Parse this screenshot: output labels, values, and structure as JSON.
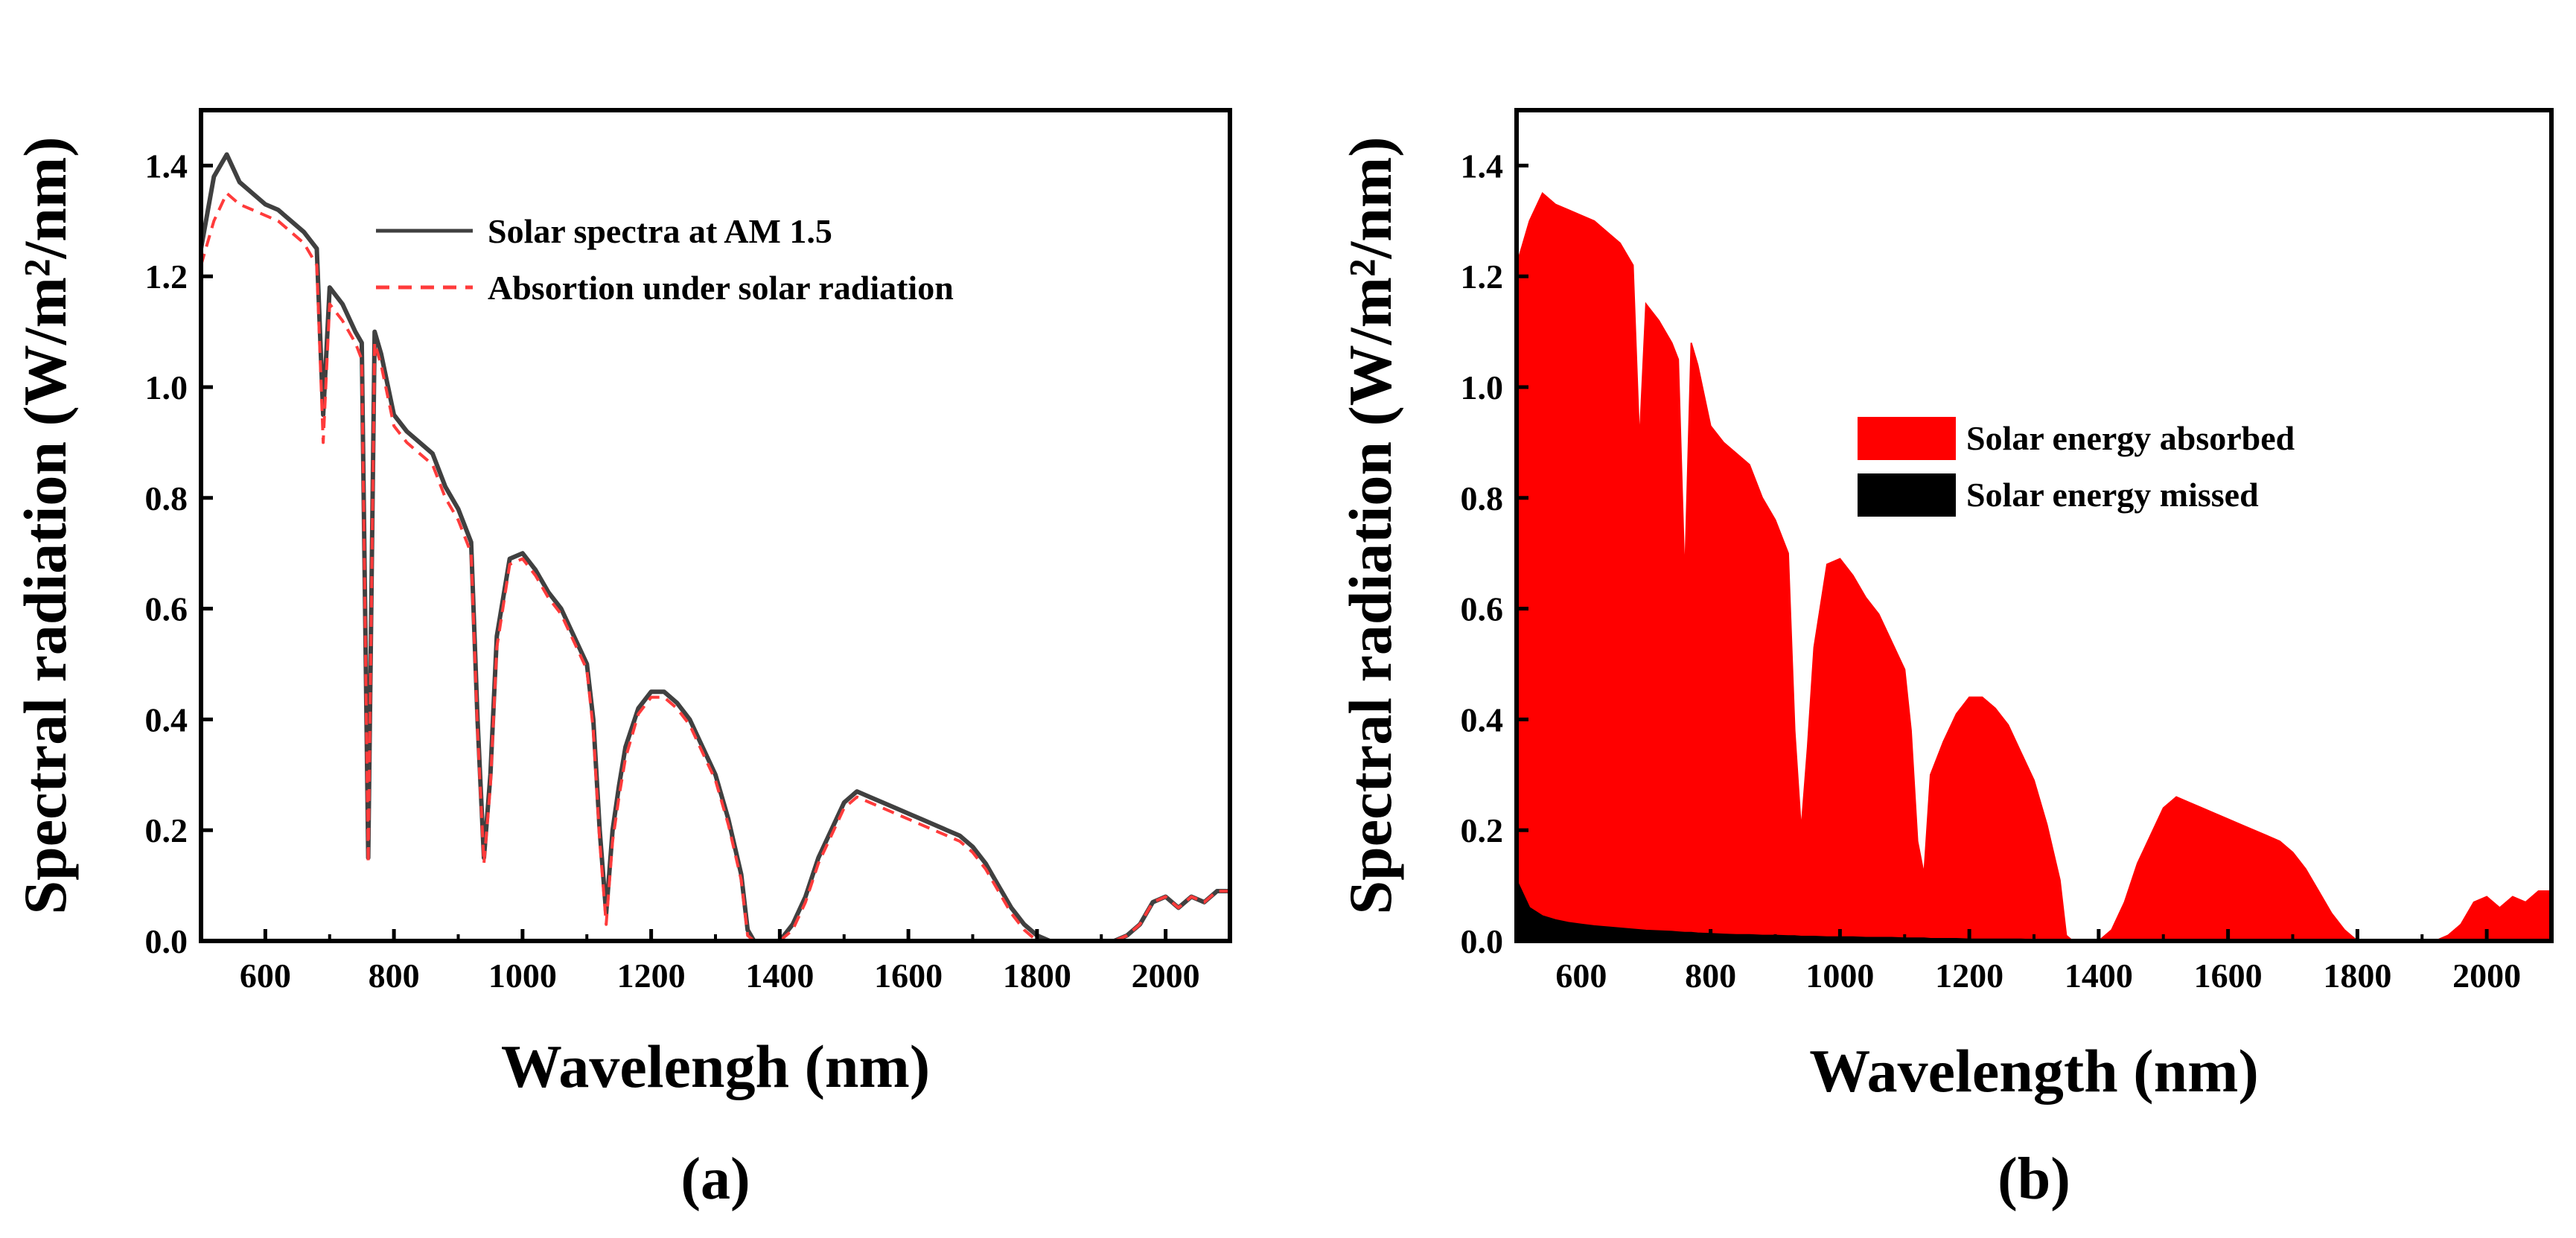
{
  "chart_data": [
    {
      "type": "line",
      "panel_label": "(a)",
      "xlabel": "Wavelengh (nm)",
      "ylabel": "Spectral radiation (W/m²/nm)",
      "xlim": [
        500,
        2100
      ],
      "ylim": [
        0,
        1.5
      ],
      "xticks": [
        600,
        800,
        1000,
        1200,
        1400,
        1600,
        1800,
        2000
      ],
      "yticks": [
        0.0,
        0.2,
        0.4,
        0.6,
        0.8,
        1.0,
        1.2,
        1.4
      ],
      "xtick_labels": [
        "600",
        "800",
        "1000",
        "1200",
        "1400",
        "1600",
        "1800",
        "2000"
      ],
      "ytick_labels": [
        "0.0",
        "0.2",
        "0.4",
        "0.6",
        "0.8",
        "1.0",
        "1.2",
        "1.4"
      ],
      "grid": false,
      "legend_position": "top-right",
      "x": [
        500,
        520,
        540,
        560,
        580,
        600,
        620,
        640,
        660,
        680,
        690,
        700,
        720,
        740,
        750,
        760,
        770,
        780,
        800,
        820,
        840,
        860,
        880,
        900,
        920,
        930,
        940,
        950,
        960,
        980,
        1000,
        1020,
        1040,
        1060,
        1080,
        1100,
        1110,
        1120,
        1130,
        1140,
        1150,
        1160,
        1180,
        1200,
        1220,
        1240,
        1260,
        1280,
        1300,
        1320,
        1340,
        1350,
        1360,
        1380,
        1400,
        1420,
        1440,
        1460,
        1480,
        1500,
        1520,
        1540,
        1560,
        1580,
        1600,
        1620,
        1640,
        1660,
        1680,
        1700,
        1720,
        1740,
        1760,
        1780,
        1800,
        1820,
        1840,
        1860,
        1880,
        1900,
        1920,
        1940,
        1960,
        1980,
        2000,
        2020,
        2040,
        2060,
        2080,
        2100
      ],
      "series": [
        {
          "name": "Solar spectra at AM 1.5",
          "color": "#404040",
          "dash": "solid",
          "values": [
            1.25,
            1.38,
            1.42,
            1.37,
            1.35,
            1.33,
            1.32,
            1.3,
            1.28,
            1.25,
            0.95,
            1.18,
            1.15,
            1.1,
            1.08,
            0.15,
            1.1,
            1.06,
            0.95,
            0.92,
            0.9,
            0.88,
            0.82,
            0.78,
            0.72,
            0.4,
            0.15,
            0.3,
            0.55,
            0.69,
            0.7,
            0.67,
            0.63,
            0.6,
            0.55,
            0.5,
            0.4,
            0.2,
            0.05,
            0.2,
            0.28,
            0.35,
            0.42,
            0.45,
            0.45,
            0.43,
            0.4,
            0.35,
            0.3,
            0.22,
            0.12,
            0.02,
            0.0,
            0.0,
            0.0,
            0.03,
            0.08,
            0.15,
            0.2,
            0.25,
            0.27,
            0.26,
            0.25,
            0.24,
            0.23,
            0.22,
            0.21,
            0.2,
            0.19,
            0.17,
            0.14,
            0.1,
            0.06,
            0.03,
            0.01,
            0.0,
            0.0,
            0.0,
            0.0,
            0.0,
            0.0,
            0.01,
            0.03,
            0.07,
            0.08,
            0.06,
            0.08,
            0.07,
            0.09,
            0.09
          ]
        },
        {
          "name": "Absortion under solar radiation",
          "color": "#ff3b3b",
          "dash": "dashed",
          "values": [
            1.22,
            1.3,
            1.35,
            1.33,
            1.32,
            1.31,
            1.3,
            1.28,
            1.26,
            1.22,
            0.9,
            1.15,
            1.12,
            1.08,
            1.05,
            0.14,
            1.08,
            1.04,
            0.93,
            0.9,
            0.88,
            0.86,
            0.8,
            0.76,
            0.7,
            0.38,
            0.14,
            0.28,
            0.53,
            0.68,
            0.69,
            0.66,
            0.62,
            0.59,
            0.54,
            0.49,
            0.38,
            0.18,
            0.03,
            0.18,
            0.26,
            0.33,
            0.41,
            0.44,
            0.44,
            0.42,
            0.39,
            0.34,
            0.29,
            0.21,
            0.11,
            0.01,
            0.0,
            0.0,
            0.0,
            0.02,
            0.07,
            0.14,
            0.19,
            0.24,
            0.26,
            0.25,
            0.24,
            0.23,
            0.22,
            0.21,
            0.2,
            0.19,
            0.18,
            0.16,
            0.13,
            0.09,
            0.05,
            0.02,
            0.0,
            0.0,
            0.0,
            0.0,
            0.0,
            0.0,
            0.0,
            0.01,
            0.03,
            0.07,
            0.08,
            0.06,
            0.08,
            0.07,
            0.09,
            0.09
          ]
        }
      ]
    },
    {
      "type": "area",
      "panel_label": "(b)",
      "xlabel": "Wavelength (nm)",
      "ylabel": "Spectral radiation (W/m²/nm)",
      "xlim": [
        500,
        2100
      ],
      "ylim": [
        0,
        1.5
      ],
      "xticks": [
        600,
        800,
        1000,
        1200,
        1400,
        1600,
        1800,
        2000
      ],
      "yticks": [
        0.0,
        0.2,
        0.4,
        0.6,
        0.8,
        1.0,
        1.2,
        1.4
      ],
      "xtick_labels": [
        "600",
        "800",
        "1000",
        "1200",
        "1400",
        "1600",
        "1800",
        "2000"
      ],
      "ytick_labels": [
        "0.0",
        "0.2",
        "0.4",
        "0.6",
        "0.8",
        "1.0",
        "1.2",
        "1.4"
      ],
      "grid": false,
      "legend_position": "center-right",
      "x": [
        500,
        520,
        540,
        560,
        580,
        600,
        620,
        640,
        660,
        680,
        690,
        700,
        720,
        740,
        750,
        760,
        770,
        780,
        800,
        820,
        840,
        860,
        880,
        900,
        920,
        930,
        940,
        950,
        960,
        980,
        1000,
        1020,
        1040,
        1060,
        1080,
        1100,
        1110,
        1120,
        1130,
        1140,
        1150,
        1160,
        1180,
        1200,
        1220,
        1240,
        1260,
        1280,
        1300,
        1320,
        1340,
        1350,
        1360,
        1380,
        1400,
        1420,
        1440,
        1460,
        1480,
        1500,
        1520,
        1540,
        1560,
        1580,
        1600,
        1620,
        1640,
        1660,
        1680,
        1700,
        1720,
        1740,
        1760,
        1780,
        1800,
        1820,
        1840,
        1860,
        1880,
        1900,
        1920,
        1940,
        1960,
        1980,
        2000,
        2020,
        2040,
        2060,
        2080,
        2100
      ],
      "series": [
        {
          "name": "Solar energy absorbed",
          "color": "#ff0000",
          "values": [
            1.22,
            1.3,
            1.35,
            1.33,
            1.32,
            1.31,
            1.3,
            1.28,
            1.26,
            1.22,
            0.9,
            1.15,
            1.12,
            1.08,
            1.05,
            0.65,
            1.08,
            1.04,
            0.93,
            0.9,
            0.88,
            0.86,
            0.8,
            0.76,
            0.7,
            0.38,
            0.2,
            0.35,
            0.53,
            0.68,
            0.69,
            0.66,
            0.62,
            0.59,
            0.54,
            0.49,
            0.38,
            0.18,
            0.12,
            0.3,
            0.33,
            0.36,
            0.41,
            0.44,
            0.44,
            0.42,
            0.39,
            0.34,
            0.29,
            0.21,
            0.11,
            0.01,
            0.0,
            0.0,
            0.0,
            0.02,
            0.07,
            0.14,
            0.19,
            0.24,
            0.26,
            0.25,
            0.24,
            0.23,
            0.22,
            0.21,
            0.2,
            0.19,
            0.18,
            0.16,
            0.13,
            0.09,
            0.05,
            0.02,
            0.0,
            0.0,
            0.0,
            0.0,
            0.0,
            0.0,
            0.0,
            0.01,
            0.03,
            0.07,
            0.08,
            0.06,
            0.08,
            0.07,
            0.09,
            0.09
          ]
        },
        {
          "name": "Solar energy missed",
          "color": "#000000",
          "values": [
            0.11,
            0.06,
            0.045,
            0.038,
            0.033,
            0.03,
            0.027,
            0.025,
            0.023,
            0.021,
            0.02,
            0.019,
            0.018,
            0.017,
            0.016,
            0.015,
            0.015,
            0.014,
            0.013,
            0.012,
            0.011,
            0.011,
            0.01,
            0.01,
            0.009,
            0.009,
            0.008,
            0.008,
            0.008,
            0.007,
            0.007,
            0.007,
            0.006,
            0.006,
            0.006,
            0.005,
            0.005,
            0.005,
            0.005,
            0.004,
            0.004,
            0.004,
            0.004,
            0.003,
            0.003,
            0.003,
            0.003,
            0.003,
            0.002,
            0.002,
            0.002,
            0.002,
            0.0,
            0.0,
            0.0,
            0.002,
            0.002,
            0.002,
            0.002,
            0.002,
            0.002,
            0.002,
            0.002,
            0.002,
            0.002,
            0.002,
            0.002,
            0.002,
            0.002,
            0.002,
            0.002,
            0.002,
            0.002,
            0.002,
            0.0,
            0.0,
            0.0,
            0.0,
            0.0,
            0.0,
            0.0,
            0.001,
            0.001,
            0.001,
            0.001,
            0.001,
            0.001,
            0.001,
            0.001,
            0.001
          ]
        }
      ]
    }
  ]
}
